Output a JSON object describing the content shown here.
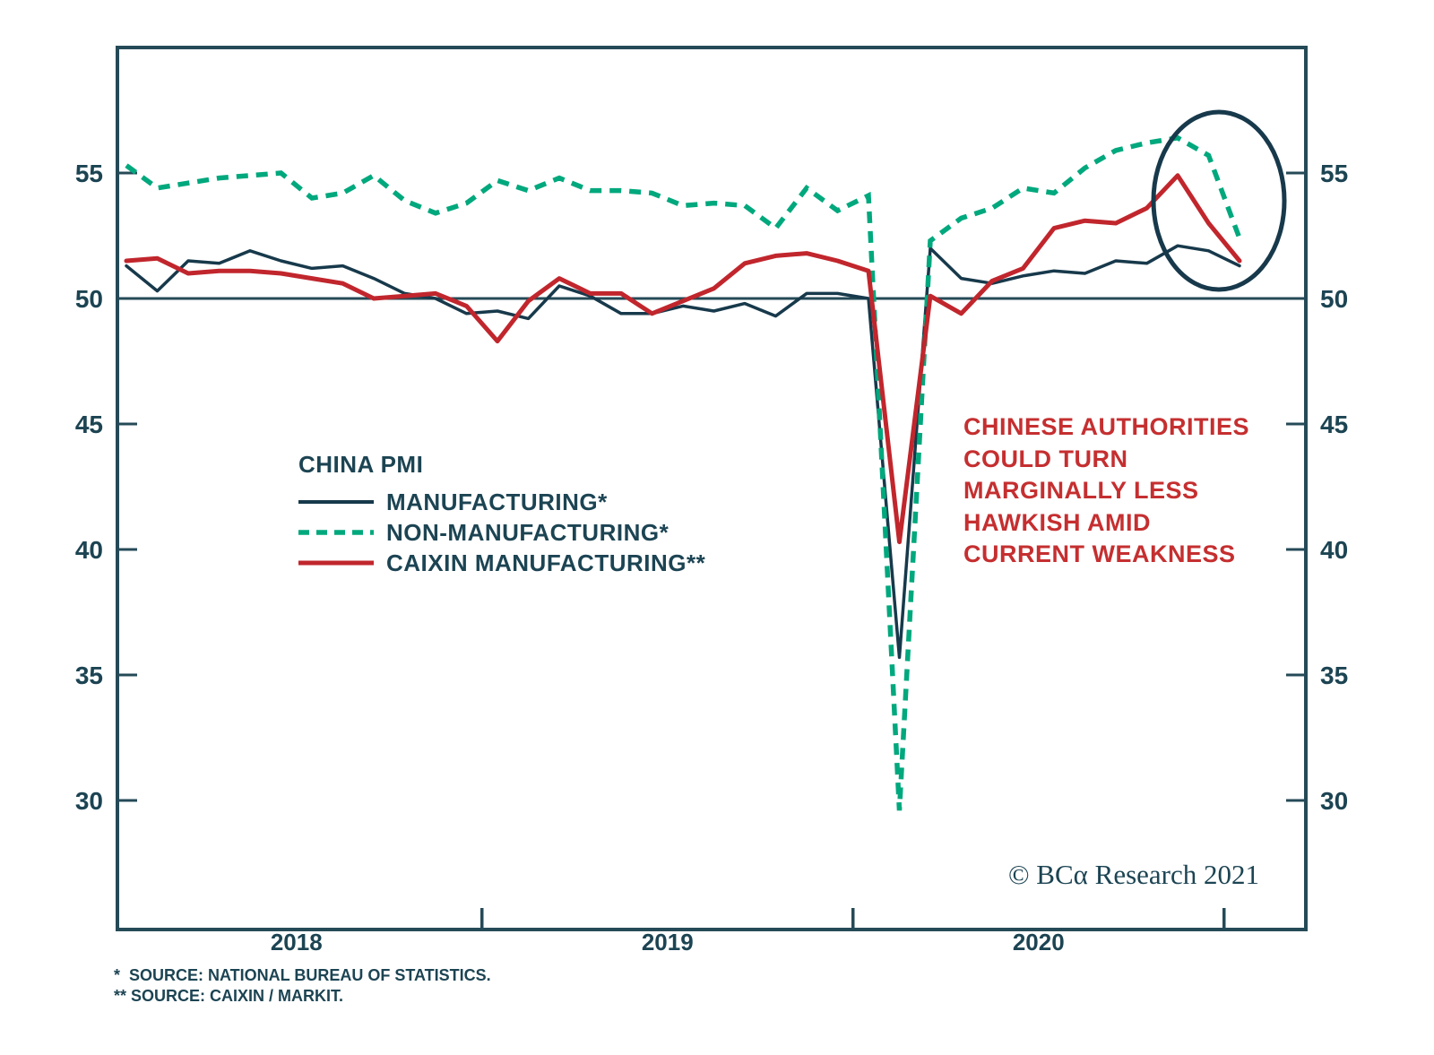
{
  "chart_data": {
    "type": "line",
    "title": "CHINA PMI",
    "x": [
      "2018-01",
      "2018-02",
      "2018-03",
      "2018-04",
      "2018-05",
      "2018-06",
      "2018-07",
      "2018-08",
      "2018-09",
      "2018-10",
      "2018-11",
      "2018-12",
      "2019-01",
      "2019-02",
      "2019-03",
      "2019-04",
      "2019-05",
      "2019-06",
      "2019-07",
      "2019-08",
      "2019-09",
      "2019-10",
      "2019-11",
      "2019-12",
      "2020-01",
      "2020-02",
      "2020-03",
      "2020-04",
      "2020-05",
      "2020-06",
      "2020-07",
      "2020-08",
      "2020-09",
      "2020-10",
      "2020-11",
      "2020-12",
      "2021-01"
    ],
    "series": [
      {
        "name": "MANUFACTURING*",
        "color_key": "navy",
        "line_style": "solid",
        "line_width": 3.5,
        "values": [
          51.3,
          50.3,
          51.5,
          51.4,
          51.9,
          51.5,
          51.2,
          51.3,
          50.8,
          50.2,
          50.0,
          49.4,
          49.5,
          49.2,
          50.5,
          50.1,
          49.4,
          49.4,
          49.7,
          49.5,
          49.8,
          49.3,
          50.2,
          50.2,
          50.0,
          35.7,
          52.0,
          50.8,
          50.6,
          50.9,
          51.1,
          51.0,
          51.5,
          51.4,
          52.1,
          51.9,
          51.3
        ]
      },
      {
        "name": "NON-MANUFACTURING*",
        "color_key": "green",
        "line_style": "dashed",
        "line_width": 5.5,
        "values": [
          55.3,
          54.4,
          54.6,
          54.8,
          54.9,
          55.0,
          54.0,
          54.2,
          54.9,
          53.9,
          53.4,
          53.8,
          54.7,
          54.3,
          54.8,
          54.3,
          54.3,
          54.2,
          53.7,
          53.8,
          53.7,
          52.8,
          54.4,
          53.5,
          54.1,
          29.6,
          52.3,
          53.2,
          53.6,
          54.4,
          54.2,
          55.2,
          55.9,
          56.2,
          56.4,
          55.7,
          52.4
        ]
      },
      {
        "name": "CAIXIN MANUFACTURING**",
        "color_key": "red",
        "line_style": "solid",
        "line_width": 5,
        "values": [
          51.5,
          51.6,
          51.0,
          51.1,
          51.1,
          51.0,
          50.8,
          50.6,
          50.0,
          50.1,
          50.2,
          49.7,
          48.3,
          49.9,
          50.8,
          50.2,
          50.2,
          49.4,
          49.9,
          50.4,
          51.4,
          51.7,
          51.8,
          51.5,
          51.1,
          40.3,
          50.1,
          49.4,
          50.7,
          51.2,
          52.8,
          53.1,
          53.0,
          53.6,
          54.9,
          53.0,
          51.5
        ]
      }
    ],
    "ylim": [
      25,
      60
    ],
    "y_ticks": [
      55,
      50,
      45,
      40,
      35,
      30
    ],
    "y_ticks_both_sides": true,
    "x_year_labels": [
      "2018",
      "2019",
      "2020"
    ],
    "reference_line": 50,
    "grid": false,
    "legend_position": "center-left",
    "highlight_circle_on_latest_points": true
  },
  "legend": {
    "title": "CHINA PMI",
    "items": [
      {
        "label": "MANUFACTURING*"
      },
      {
        "label": "NON-MANUFACTURING*"
      },
      {
        "label": "CAIXIN MANUFACTURING**"
      }
    ]
  },
  "annotation": {
    "lines": [
      "CHINESE AUTHORITIES",
      "COULD TURN",
      "MARGINALLY LESS",
      "HAWKISH AMID",
      "CURRENT WEAKNESS"
    ]
  },
  "watermark": "© BCα Research 2021",
  "footnotes": [
    "*  SOURCE: NATIONAL BUREAU OF STATISTICS.",
    "** SOURCE: CAIXIN / MARKIT."
  ],
  "colors": {
    "navy": "#17394b",
    "green": "#00a87d",
    "red": "#c1262d",
    "axis": "#254a57",
    "text": "#1c4453",
    "annotation_red": "#c52f30",
    "background": "#ffffff"
  }
}
